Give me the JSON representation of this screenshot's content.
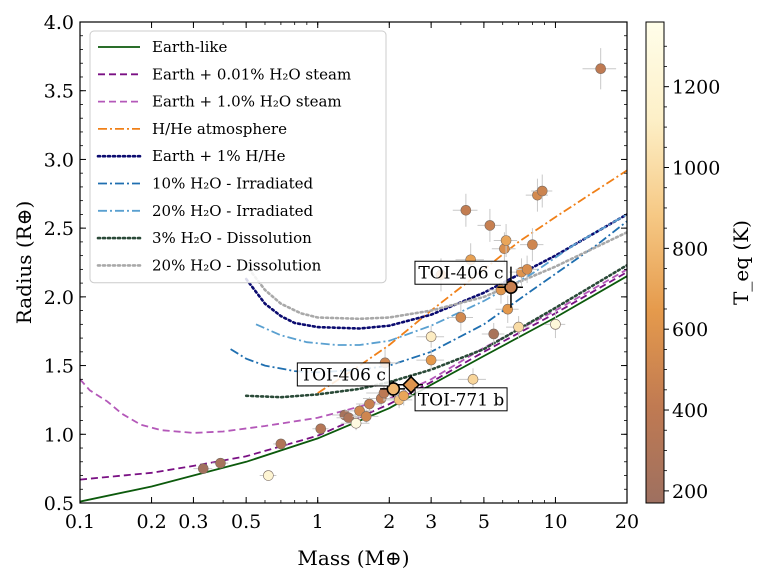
{
  "chart_data": {
    "type": "scatter",
    "title": "",
    "xlabel": "Mass (M⊕)",
    "ylabel": "Radius (R⊕)",
    "xscale": "log",
    "xlim": [
      0.1,
      20
    ],
    "ylim": [
      0.5,
      4.0
    ],
    "xticks": [
      0.1,
      0.2,
      0.3,
      0.5,
      1,
      2,
      3,
      5,
      10,
      20
    ],
    "xtick_labels": [
      "0.1",
      "0.2",
      "0.3",
      "0.5",
      "1",
      "2",
      "3",
      "5",
      "10",
      "20"
    ],
    "yticks": [
      0.5,
      1.0,
      1.5,
      2.0,
      2.5,
      3.0,
      3.5,
      4.0
    ],
    "ytick_labels": [
      "0.5",
      "1.0",
      "1.5",
      "2.0",
      "2.5",
      "3.0",
      "3.5",
      "4.0"
    ],
    "legend_position": "upper-left",
    "colorbar": {
      "label": "T_eq (K)",
      "range": [
        170,
        1360
      ],
      "ticks": [
        200,
        400,
        600,
        800,
        1000,
        1200
      ],
      "colors": [
        "#9e7060",
        "#c07a52",
        "#e59a4c",
        "#f6c985",
        "#fdf0c8",
        "#fffeea"
      ]
    },
    "curves": [
      {
        "name": "Earth-like",
        "color": "#0c5a0c",
        "dash": "solid",
        "points": [
          [
            0.1,
            0.51
          ],
          [
            0.2,
            0.62
          ],
          [
            0.3,
            0.7
          ],
          [
            0.5,
            0.8
          ],
          [
            1,
            0.97
          ],
          [
            2,
            1.19
          ],
          [
            3,
            1.36
          ],
          [
            5,
            1.57
          ],
          [
            10,
            1.85
          ],
          [
            20,
            2.15
          ]
        ]
      },
      {
        "name": "Earth + 0.01% H₂O steam",
        "color": "#7a1084",
        "dash": "dash",
        "points": [
          [
            0.1,
            0.67
          ],
          [
            0.2,
            0.72
          ],
          [
            0.3,
            0.77
          ],
          [
            0.5,
            0.84
          ],
          [
            1,
            0.99
          ],
          [
            2,
            1.22
          ],
          [
            3,
            1.38
          ],
          [
            5,
            1.6
          ],
          [
            10,
            1.88
          ],
          [
            20,
            2.18
          ]
        ]
      },
      {
        "name": "Earth + 1.0% H₂O steam",
        "color": "#b458b9",
        "dash": "dash",
        "points": [
          [
            0.1,
            1.4
          ],
          [
            0.11,
            1.32
          ],
          [
            0.13,
            1.24
          ],
          [
            0.15,
            1.15
          ],
          [
            0.18,
            1.07
          ],
          [
            0.22,
            1.03
          ],
          [
            0.3,
            1.01
          ],
          [
            0.4,
            1.02
          ],
          [
            0.6,
            1.06
          ],
          [
            1,
            1.12
          ],
          [
            2,
            1.26
          ],
          [
            3,
            1.4
          ],
          [
            5,
            1.63
          ],
          [
            10,
            1.9
          ],
          [
            20,
            2.2
          ]
        ]
      },
      {
        "name": "H/He atmosphere",
        "color": "#f08018",
        "dash": "dashdot",
        "points": [
          [
            1,
            1.3
          ],
          [
            1.5,
            1.5
          ],
          [
            2,
            1.65
          ],
          [
            3,
            1.9
          ],
          [
            5,
            2.2
          ],
          [
            7,
            2.4
          ],
          [
            10,
            2.58
          ],
          [
            15,
            2.78
          ],
          [
            20,
            2.92
          ]
        ]
      },
      {
        "name": "Earth + 1% H/He",
        "color": "#0b0b70",
        "dash": "dot",
        "points": [
          [
            0.5,
            2.13
          ],
          [
            0.6,
            1.95
          ],
          [
            0.7,
            1.86
          ],
          [
            0.8,
            1.81
          ],
          [
            1,
            1.78
          ],
          [
            1.5,
            1.77
          ],
          [
            2,
            1.79
          ],
          [
            3,
            1.87
          ],
          [
            5,
            2.03
          ],
          [
            10,
            2.3
          ],
          [
            20,
            2.6
          ]
        ]
      },
      {
        "name": "10% H₂O - Irradiated",
        "color": "#1f6fb0",
        "dash": "dashdot",
        "points": [
          [
            0.43,
            1.62
          ],
          [
            0.5,
            1.55
          ],
          [
            0.6,
            1.5
          ],
          [
            0.8,
            1.46
          ],
          [
            1,
            1.45
          ],
          [
            1.5,
            1.47
          ],
          [
            2,
            1.5
          ],
          [
            3,
            1.6
          ],
          [
            5,
            1.8
          ],
          [
            8,
            2.05
          ],
          [
            15,
            2.38
          ],
          [
            20,
            2.55
          ]
        ]
      },
      {
        "name": "20% H₂O - Irradiated",
        "color": "#5aa0d0",
        "dash": "dashdot",
        "points": [
          [
            0.55,
            1.8
          ],
          [
            0.7,
            1.72
          ],
          [
            0.9,
            1.67
          ],
          [
            1.2,
            1.65
          ],
          [
            1.5,
            1.65
          ],
          [
            2,
            1.68
          ],
          [
            3,
            1.79
          ],
          [
            5,
            1.97
          ],
          [
            8,
            2.17
          ],
          [
            12,
            2.38
          ],
          [
            20,
            2.6
          ]
        ]
      },
      {
        "name": "3% H₂O - Dissolution",
        "color": "#2a4a38",
        "dash": "dot",
        "points": [
          [
            0.5,
            1.28
          ],
          [
            0.7,
            1.27
          ],
          [
            1,
            1.29
          ],
          [
            1.5,
            1.33
          ],
          [
            2,
            1.38
          ],
          [
            3,
            1.47
          ],
          [
            5,
            1.62
          ],
          [
            10,
            1.92
          ],
          [
            20,
            2.23
          ]
        ]
      },
      {
        "name": "20% H₂O - Dissolution",
        "color": "#a9a9a9",
        "dash": "dot",
        "points": [
          [
            0.5,
            2.23
          ],
          [
            0.6,
            2.05
          ],
          [
            0.7,
            1.95
          ],
          [
            0.85,
            1.88
          ],
          [
            1,
            1.85
          ],
          [
            1.5,
            1.84
          ],
          [
            2,
            1.85
          ],
          [
            3,
            1.9
          ],
          [
            5,
            2.0
          ],
          [
            10,
            2.22
          ],
          [
            20,
            2.47
          ]
        ]
      }
    ],
    "points": [
      {
        "x": 0.33,
        "y": 0.75,
        "teq": 200,
        "xerr": 0.03,
        "yerr": 0.03
      },
      {
        "x": 0.39,
        "y": 0.79,
        "teq": 230,
        "xerr": 0.03,
        "yerr": 0.03
      },
      {
        "x": 0.62,
        "y": 0.7,
        "teq": 1200,
        "xerr": 0.05,
        "yerr": 0.03
      },
      {
        "x": 0.7,
        "y": 0.93,
        "teq": 300,
        "xerr": 0.05,
        "yerr": 0.03
      },
      {
        "x": 1.03,
        "y": 1.04,
        "teq": 330,
        "xerr": 0.08,
        "yerr": 0.03
      },
      {
        "x": 1.3,
        "y": 1.14,
        "teq": 240,
        "xerr": 0.15,
        "yerr": 0.04
      },
      {
        "x": 1.35,
        "y": 1.12,
        "teq": 280,
        "xerr": 0.15,
        "yerr": 0.04
      },
      {
        "x": 1.45,
        "y": 1.08,
        "teq": 1300,
        "xerr": 0.2,
        "yerr": 0.05
      },
      {
        "x": 1.5,
        "y": 1.17,
        "teq": 520,
        "xerr": 0.2,
        "yerr": 0.05
      },
      {
        "x": 1.6,
        "y": 1.13,
        "teq": 500,
        "xerr": 0.2,
        "yerr": 0.05
      },
      {
        "x": 1.65,
        "y": 1.22,
        "teq": 450,
        "xerr": 0.2,
        "yerr": 0.05
      },
      {
        "x": 1.85,
        "y": 1.26,
        "teq": 420,
        "xerr": 0.3,
        "yerr": 0.06
      },
      {
        "x": 1.9,
        "y": 1.3,
        "teq": 380,
        "xerr": 0.3,
        "yerr": 0.06
      },
      {
        "x": 1.92,
        "y": 1.52,
        "teq": 500,
        "xerr": 0.3,
        "yerr": 0.1
      },
      {
        "x": 2.2,
        "y": 1.25,
        "teq": 850,
        "xerr": 0.3,
        "yerr": 0.06
      },
      {
        "x": 2.3,
        "y": 1.28,
        "teq": 700,
        "xerr": 0.3,
        "yerr": 0.07
      },
      {
        "x": 3.0,
        "y": 1.54,
        "teq": 640,
        "xerr": 0.4,
        "yerr": 0.08
      },
      {
        "x": 3.0,
        "y": 1.71,
        "teq": 1100,
        "xerr": 0.4,
        "yerr": 0.08
      },
      {
        "x": 3.3,
        "y": 2.16,
        "teq": 560,
        "xerr": 0.4,
        "yerr": 0.12
      },
      {
        "x": 4.0,
        "y": 1.85,
        "teq": 520,
        "xerr": 0.5,
        "yerr": 0.1
      },
      {
        "x": 4.2,
        "y": 2.63,
        "teq": 430,
        "xerr": 0.5,
        "yerr": 0.12
      },
      {
        "x": 4.4,
        "y": 2.27,
        "teq": 680,
        "xerr": 0.6,
        "yerr": 0.12
      },
      {
        "x": 4.5,
        "y": 1.4,
        "teq": 960,
        "xerr": 0.6,
        "yerr": 0.08
      },
      {
        "x": 5.3,
        "y": 2.52,
        "teq": 450,
        "xerr": 0.6,
        "yerr": 0.12
      },
      {
        "x": 5.5,
        "y": 1.73,
        "teq": 250,
        "xerr": 0.6,
        "yerr": 0.08
      },
      {
        "x": 5.9,
        "y": 2.05,
        "teq": 620,
        "xerr": 0.7,
        "yerr": 0.1
      },
      {
        "x": 6.1,
        "y": 2.35,
        "teq": 560,
        "xerr": 0.7,
        "yerr": 0.12
      },
      {
        "x": 6.2,
        "y": 2.41,
        "teq": 700,
        "xerr": 0.7,
        "yerr": 0.12
      },
      {
        "x": 6.3,
        "y": 1.91,
        "teq": 640,
        "xerr": 0.7,
        "yerr": 0.1
      },
      {
        "x": 7.0,
        "y": 1.78,
        "teq": 1000,
        "xerr": 0.8,
        "yerr": 0.08
      },
      {
        "x": 7.2,
        "y": 2.18,
        "teq": 600,
        "xerr": 0.8,
        "yerr": 0.1
      },
      {
        "x": 7.6,
        "y": 2.2,
        "teq": 560,
        "xerr": 0.8,
        "yerr": 0.1
      },
      {
        "x": 8.0,
        "y": 2.38,
        "teq": 500,
        "xerr": 0.9,
        "yerr": 0.12
      },
      {
        "x": 8.4,
        "y": 2.74,
        "teq": 530,
        "xerr": 0.9,
        "yerr": 0.12
      },
      {
        "x": 8.8,
        "y": 2.77,
        "teq": 480,
        "xerr": 0.9,
        "yerr": 0.12
      },
      {
        "x": 10.0,
        "y": 1.8,
        "teq": 1250,
        "xerr": 1.0,
        "yerr": 0.1
      },
      {
        "x": 15.5,
        "y": 3.66,
        "teq": 400,
        "xerr": 2.5,
        "yerr": 0.15
      }
    ],
    "highlighted": [
      {
        "name": "TOI-406 c",
        "x": 6.5,
        "y": 2.07,
        "teq": 450,
        "marker": "circle",
        "xerr": 0.8,
        "yerr": 0.15
      },
      {
        "name": "TOI-406 c",
        "x": 2.08,
        "y": 1.33,
        "teq": 800,
        "marker": "circle",
        "xerr": 0.25,
        "yerr": 0.06
      },
      {
        "name": "TOI-771 b",
        "x": 2.47,
        "y": 1.36,
        "teq": 600,
        "marker": "diamond",
        "xerr": 0.3,
        "yerr": 0.07
      }
    ],
    "annotations": [
      {
        "text": "TOI-406 c",
        "x": 6.5,
        "y": 2.07,
        "anchor": "upper-left"
      },
      {
        "text": "TOI-406 c",
        "x": 2.08,
        "y": 1.33,
        "anchor": "upper-left"
      },
      {
        "text": "TOI-771 b",
        "x": 2.47,
        "y": 1.36,
        "anchor": "lower-right"
      }
    ]
  }
}
